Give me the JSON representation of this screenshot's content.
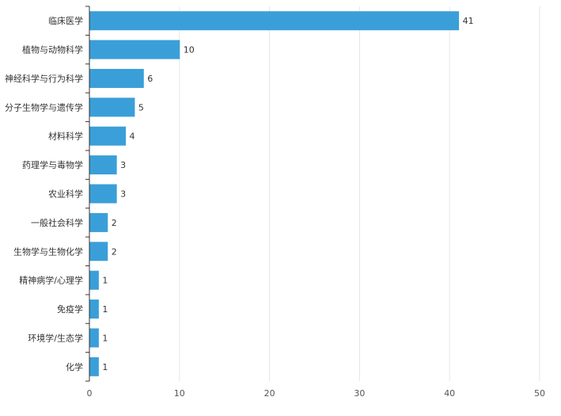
{
  "chart_data": {
    "type": "bar",
    "orientation": "horizontal",
    "categories": [
      "临床医学",
      "植物与动物科学",
      "神经科学与行为科学",
      "分子生物学与遗传学",
      "材料科学",
      "药理学与毒物学",
      "农业科学",
      "一般社会科学",
      "生物学与生物化学",
      "精神病学/心理学",
      "免疫学",
      "环境学/生态学",
      "化学"
    ],
    "values": [
      41,
      10,
      6,
      5,
      4,
      3,
      3,
      2,
      2,
      1,
      1,
      1,
      1
    ],
    "xlim": [
      0,
      50
    ],
    "xticks": [
      0,
      10,
      20,
      30,
      40,
      50
    ],
    "grid": "vertical",
    "data_labels": true,
    "title": "",
    "xlabel": "",
    "ylabel": "",
    "colors": {
      "bar": "#3a9fd8",
      "grid": "#e6e6e6",
      "axis": "#333333"
    }
  }
}
